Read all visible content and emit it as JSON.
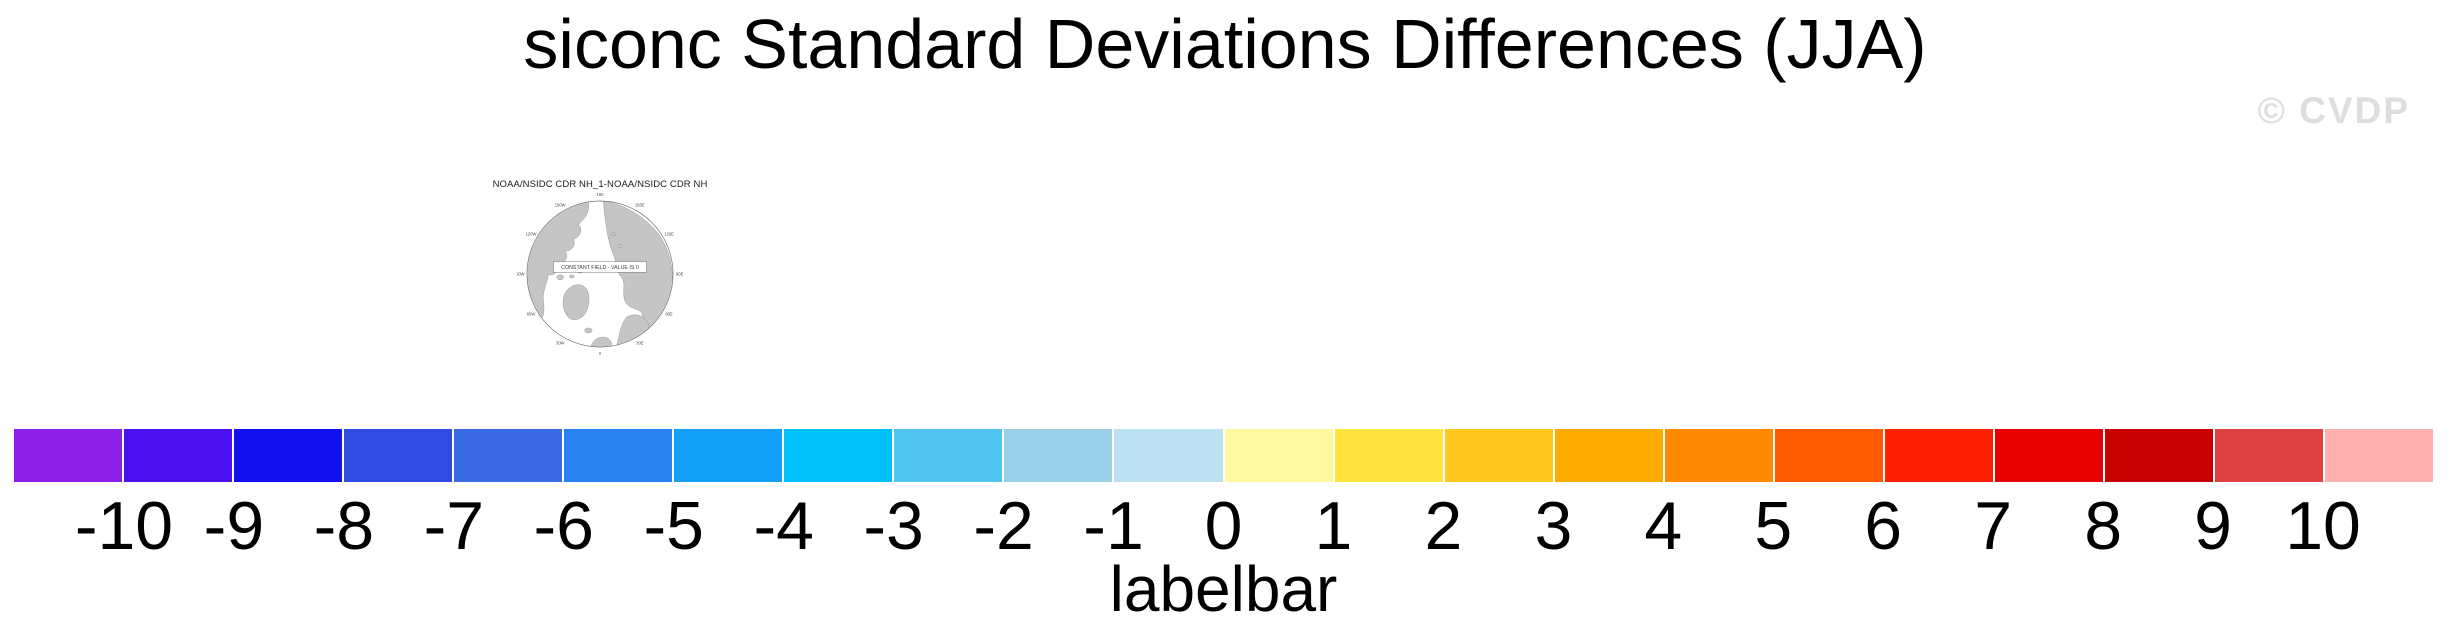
{
  "page": {
    "title": "siconc Standard Deviations Differences (JJA)",
    "watermark": "© CVDP"
  },
  "map_panel": {
    "title": "NOAA/NSIDC CDR NH_1-NOAA/NSIDC CDR NH",
    "center_label": "CONSTANT FIELD - VALUE IS 0",
    "lon_labels": [
      "180",
      "150E",
      "120E",
      "90E",
      "60E",
      "30E",
      "0",
      "30W",
      "60W",
      "90W",
      "120W",
      "150W"
    ],
    "land_color": "#c5c5c5",
    "coast_color": "#8c8c8c",
    "circle_color": "#555555"
  },
  "chart_data": {
    "type": "colorbar",
    "title": "siconc Standard Deviations Differences (JJA)",
    "xlabel": "labelbar",
    "levels": [
      -10,
      -9,
      -8,
      -7,
      -6,
      -5,
      -4,
      -3,
      -2,
      -1,
      0,
      1,
      2,
      3,
      4,
      5,
      6,
      7,
      8,
      9,
      10
    ],
    "tick_labels": [
      "-10",
      "-9",
      "-8",
      "-7",
      "-6",
      "-5",
      "-4",
      "-3",
      "-2",
      "-1",
      "0",
      "1",
      "2",
      "3",
      "4",
      "5",
      "6",
      "7",
      "8",
      "9",
      "10"
    ],
    "colors": [
      "#8a1fe8",
      "#4a10f0",
      "#1010f0",
      "#2f4be0",
      "#3c6ae4",
      "#2a82f0",
      "#14a0f8",
      "#00c0fa",
      "#52c4f2",
      "#9acfe8",
      "#bde0f2",
      "#fef8a0",
      "#ffe440",
      "#ffc81e",
      "#ffab00",
      "#ff8a00",
      "#ff5a00",
      "#ff2000",
      "#e80000",
      "#c80000",
      "#dc4040",
      "#ffb0b0"
    ],
    "legend_position": "bottom",
    "grid": false
  }
}
